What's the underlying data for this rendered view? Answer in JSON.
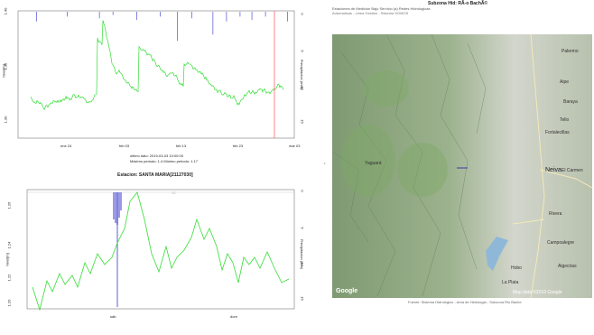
{
  "top_chart": {
    "y_left_ticks": [
      "1.40",
      "1.35",
      "1.30"
    ],
    "y_right_ticks": [
      "0",
      "5",
      "10",
      "15"
    ],
    "y_left_label": "Nivel[m]",
    "y_right_label": "Precipitacion (mm)",
    "x_ticks": [
      "ene 24",
      "feb 03",
      "feb 13",
      "feb 23",
      "mar 03"
    ],
    "info": {
      "line1": "ultimo dato:  2019-03-03 10:00:00",
      "line2": "Máximo periodo:  1.4   Mínimo periodo:  1.17"
    }
  },
  "bottom_chart": {
    "title": "Estacion: SANTA MARIA[21127030]",
    "y_left_ticks": [
      "1.26",
      "1.24",
      "1.22",
      "1.20"
    ],
    "y_right_ticks": [
      "0",
      "5",
      "10",
      "15"
    ],
    "y_left_label": "Nivel[m]",
    "y_right_label": "Precipitacion (mm)",
    "x_ticks": [
      "sáb",
      "dom"
    ],
    "top_marker": "12"
  },
  "map": {
    "title": "Subzona Hid: RÃ-o BachÃ©",
    "header_line1": "Estaciones de Medicion Bajo Servicio (a) Redes Hidrologicas",
    "header_line2": "Automaticas - Linea Gestion - Sistema SOMOS",
    "footer_source": "Fuente: Sistema Hidrologico - Area de Hidrologia - Subzona Rio Bache",
    "google_logo": "Google",
    "attribution": "Map data ©2019 Google",
    "labels": [
      "Palermo",
      "Neiva",
      "El Carmen",
      "Campoalegre",
      "Rivera",
      "Yaguará",
      "Aipe",
      "Fortalecillas",
      "Algeciras",
      "Tello",
      "Baraya",
      "Hobo",
      "La Plata"
    ],
    "colors": {
      "relief": "#9fb592",
      "water": "#8fb8d8",
      "road": "#f4e9b8"
    }
  },
  "colors": {
    "level": "#33dd33",
    "precip": "#3333cc",
    "cursor": "#ff6666"
  }
}
